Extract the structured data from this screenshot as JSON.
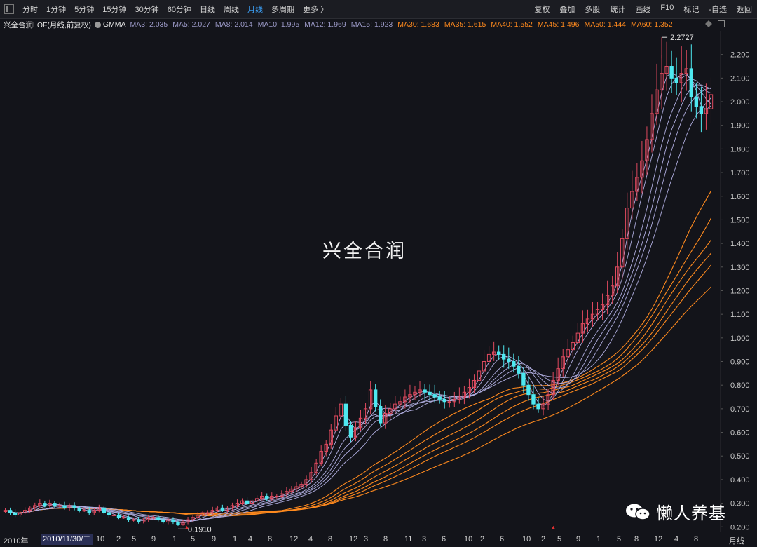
{
  "toolbar": {
    "periods": [
      "分时",
      "1分钟",
      "5分钟",
      "15分钟",
      "30分钟",
      "60分钟",
      "日线",
      "周线",
      "月线",
      "多周期",
      "更多 〉"
    ],
    "active_period": "月线",
    "right": [
      "复权",
      "叠加",
      "多股",
      "统计",
      "画线",
      "F10",
      "标记",
      "-自选",
      "返回"
    ]
  },
  "info": {
    "title": "兴全合润LOF(月线,前复权)",
    "indicator": "GMMA",
    "short_ma": [
      "MA3: 2.035",
      "MA5: 2.027",
      "MA8: 2.014",
      "MA10: 1.995",
      "MA12: 1.969",
      "MA15: 1.923"
    ],
    "long_ma": [
      "MA30: 1.683",
      "MA35: 1.615",
      "MA40: 1.552",
      "MA45: 1.496",
      "MA50: 1.444",
      "MA60: 1.352"
    ]
  },
  "watermark_title": "兴全合润",
  "brand": "懒人养基",
  "colors": {
    "up": "#e04a5f",
    "down": "#4ee8f0",
    "short_ma": "#b0aee0",
    "long_ma": "#ff8a1e",
    "bg": "#13141a"
  },
  "x_axis": {
    "labels": [
      "2010年",
      "2010/11/30/二",
      "10",
      "2",
      "5",
      "9",
      "1",
      "5",
      "9",
      "1",
      "4",
      "8",
      "12",
      "4",
      "8",
      "12",
      "3",
      "8",
      "11",
      "3",
      "6",
      "10",
      "2",
      "6",
      "10",
      "2",
      "5",
      "9",
      "1",
      "5",
      "8",
      "12",
      "4",
      "8"
    ],
    "unit": "月线"
  },
  "chart_data": {
    "type": "candlestick",
    "ylim": [
      0.18,
      2.3
    ],
    "y_ticks": [
      "2.200",
      "2.100",
      "2.000",
      "1.900",
      "1.800",
      "1.700",
      "1.600",
      "1.500",
      "1.400",
      "1.300",
      "1.200",
      "1.100",
      "1.000",
      "0.900",
      "0.800",
      "0.700",
      "0.600",
      "0.500",
      "0.400",
      "0.300",
      "0.200"
    ],
    "high_label": "2.2727",
    "low_label": "0.1910",
    "closes": [
      0.27,
      0.26,
      0.25,
      0.26,
      0.27,
      0.28,
      0.29,
      0.3,
      0.29,
      0.3,
      0.29,
      0.29,
      0.28,
      0.29,
      0.28,
      0.27,
      0.27,
      0.26,
      0.27,
      0.28,
      0.26,
      0.25,
      0.25,
      0.24,
      0.24,
      0.23,
      0.23,
      0.22,
      0.23,
      0.24,
      0.24,
      0.23,
      0.22,
      0.23,
      0.22,
      0.21,
      0.22,
      0.23,
      0.24,
      0.25,
      0.26,
      0.26,
      0.27,
      0.28,
      0.27,
      0.28,
      0.29,
      0.3,
      0.31,
      0.3,
      0.31,
      0.32,
      0.33,
      0.32,
      0.33,
      0.33,
      0.34,
      0.35,
      0.36,
      0.37,
      0.38,
      0.4,
      0.43,
      0.47,
      0.52,
      0.55,
      0.61,
      0.67,
      0.72,
      0.63,
      0.58,
      0.62,
      0.66,
      0.7,
      0.78,
      0.71,
      0.64,
      0.68,
      0.7,
      0.72,
      0.73,
      0.75,
      0.76,
      0.77,
      0.78,
      0.77,
      0.76,
      0.75,
      0.74,
      0.73,
      0.73,
      0.74,
      0.75,
      0.77,
      0.79,
      0.82,
      0.86,
      0.9,
      0.93,
      0.94,
      0.93,
      0.91,
      0.9,
      0.88,
      0.85,
      0.8,
      0.76,
      0.72,
      0.7,
      0.72,
      0.76,
      0.82,
      0.87,
      0.92,
      0.95,
      0.98,
      1.02,
      1.06,
      1.08,
      1.1,
      1.12,
      1.14,
      1.18,
      1.22,
      1.3,
      1.42,
      1.55,
      1.62,
      1.68,
      1.75,
      1.84,
      1.95,
      2.05,
      2.12,
      2.15,
      2.1,
      2.08,
      2.12,
      2.14,
      2.02,
      1.98,
      1.95,
      1.97,
      2.03
    ],
    "ma": {
      "MA3": 2.035,
      "MA5": 2.027,
      "MA8": 2.014,
      "MA10": 1.995,
      "MA12": 1.969,
      "MA15": 1.923,
      "MA30": 1.683,
      "MA35": 1.615,
      "MA40": 1.552,
      "MA45": 1.496,
      "MA50": 1.444,
      "MA60": 1.352
    }
  }
}
